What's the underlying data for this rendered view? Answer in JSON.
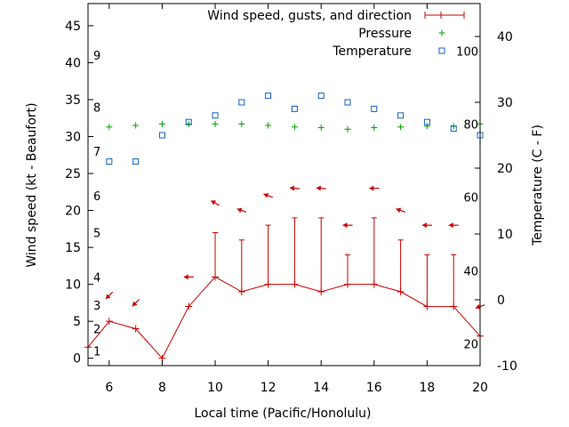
{
  "chart_data": {
    "type": "line",
    "xlabel": "Local time (Pacific/Honolulu)",
    "ylabel": "Wind speed (kt - Beaufort)",
    "y2label": "Temperature (C - F)",
    "xlim": [
      5.2,
      20
    ],
    "ylim": [
      -1,
      48
    ],
    "y2lim": [
      -10,
      45
    ],
    "x_ticks": [
      6,
      8,
      10,
      12,
      14,
      16,
      18,
      20
    ],
    "y_ticks": [
      0,
      5,
      10,
      15,
      20,
      25,
      30,
      35,
      40,
      45
    ],
    "y2_ticks": [
      -10,
      0,
      10,
      20,
      30,
      40
    ],
    "beaufort_labels": [
      {
        "text": "1",
        "y": 1.0
      },
      {
        "text": "2",
        "y": 4.0
      },
      {
        "text": "3",
        "y": 7.2
      },
      {
        "text": "4",
        "y": 11.0
      },
      {
        "text": "5",
        "y": 17.0
      },
      {
        "text": "6",
        "y": 22.0
      },
      {
        "text": "7",
        "y": 28.0
      },
      {
        "text": "8",
        "y": 34.0
      },
      {
        "text": "9",
        "y": 41.0
      }
    ],
    "fahrenheit_labels": [
      {
        "text": "20",
        "y2": -6.7
      },
      {
        "text": "40",
        "y2": 4.4
      },
      {
        "text": "60",
        "y2": 15.6
      },
      {
        "text": "80",
        "y2": 26.7
      },
      {
        "text": "100",
        "y2": 37.8
      }
    ],
    "legend": {
      "position": "top-right",
      "entries": [
        "Wind speed, gusts, and direction",
        "Pressure",
        "Temperature"
      ]
    },
    "series": [
      {
        "name": "Wind speed, gusts, and direction",
        "color": "#cc0000",
        "x": [
          5.2,
          6,
          7,
          8,
          9,
          10,
          11,
          12,
          13,
          14,
          15,
          16,
          17,
          18,
          19,
          20
        ],
        "values": [
          1.5,
          5,
          4,
          0,
          7,
          11,
          9,
          10,
          10,
          9,
          10,
          10,
          9,
          7,
          7,
          3
        ],
        "gusts": [
          null,
          null,
          null,
          null,
          null,
          17,
          16,
          18,
          19,
          19,
          14,
          19,
          16,
          14,
          14,
          null
        ]
      },
      {
        "name": "Direction arrows",
        "color": "#cc0000",
        "x": [
          6,
          7,
          9,
          10,
          11,
          12,
          13,
          14,
          15,
          16,
          17,
          18,
          19,
          20
        ],
        "y": [
          8.5,
          7.5,
          11,
          21,
          20,
          22,
          23,
          23,
          18,
          23,
          20,
          18,
          18,
          7
        ],
        "dir_deg": [
          225,
          225,
          270,
          300,
          290,
          290,
          275,
          275,
          270,
          270,
          290,
          270,
          270,
          250
        ]
      },
      {
        "name": "Pressure",
        "color": "#00a000",
        "marker": "+",
        "x": [
          6,
          7,
          8,
          9,
          10,
          11,
          12,
          13,
          14,
          15,
          16,
          17,
          18,
          19,
          20
        ],
        "values": [
          31.3,
          31.5,
          31.7,
          31.7,
          31.7,
          31.7,
          31.5,
          31.3,
          31.2,
          31.0,
          31.2,
          31.3,
          31.4,
          31.4,
          31.7
        ]
      },
      {
        "name": "Temperature",
        "color": "#1060c0",
        "marker": "square",
        "axis": "y2",
        "x": [
          6,
          7,
          8,
          9,
          10,
          11,
          12,
          13,
          14,
          15,
          16,
          17,
          18,
          19,
          20
        ],
        "values": [
          21,
          21,
          25,
          27,
          28,
          30,
          31,
          29,
          31,
          30,
          29,
          28,
          27,
          26,
          25
        ]
      }
    ]
  }
}
